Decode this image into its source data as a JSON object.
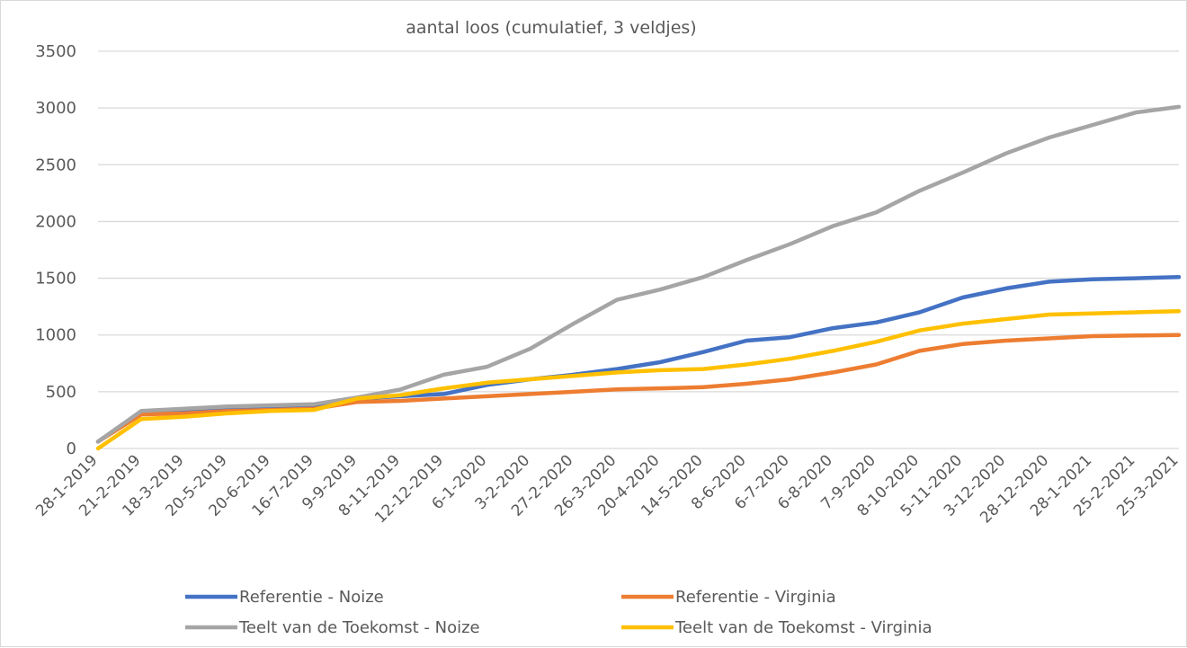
{
  "chart_data": {
    "type": "line",
    "title": "aantal loos (cumulatief, 3 veldjes)",
    "xlabel": "",
    "ylabel": "",
    "ylim": [
      0,
      3500
    ],
    "yticks": [
      0,
      500,
      1000,
      1500,
      2000,
      2500,
      3000,
      3500
    ],
    "grid": true,
    "legend_position": "bottom",
    "x": [
      "28-1-2019",
      "21-2-2019",
      "18-3-2019",
      "20-5-2019",
      "20-6-2019",
      "16-7-2019",
      "9-9-2019",
      "8-11-2019",
      "12-12-2019",
      "6-1-2020",
      "3-2-2020",
      "27-2-2020",
      "26-3-2020",
      "20-4-2020",
      "14-5-2020",
      "8-6-2020",
      "6-7-2020",
      "6-8-2020",
      "7-9-2020",
      "8-10-2020",
      "5-11-2020",
      "3-12-2020",
      "28-12-2020",
      "28-1-2021",
      "25-2-2021",
      "25-3-2021"
    ],
    "series": [
      {
        "name": "Referentie - Noize",
        "color": "#4472c4",
        "values": [
          60,
          320,
          330,
          350,
          360,
          370,
          440,
          460,
          480,
          560,
          610,
          650,
          700,
          760,
          850,
          950,
          980,
          1060,
          1110,
          1200,
          1330,
          1410,
          1470,
          1490,
          1500,
          1510
        ]
      },
      {
        "name": "Referentie - Virginia",
        "color": "#ed7d31",
        "values": [
          60,
          300,
          310,
          330,
          340,
          350,
          410,
          420,
          440,
          460,
          480,
          500,
          520,
          530,
          540,
          570,
          610,
          670,
          740,
          860,
          920,
          950,
          970,
          990,
          995,
          1000
        ]
      },
      {
        "name": "Teelt van de Toekomst - Noize",
        "color": "#a5a5a5",
        "values": [
          60,
          330,
          350,
          370,
          380,
          390,
          450,
          520,
          650,
          720,
          880,
          1100,
          1310,
          1400,
          1510,
          1660,
          1800,
          1960,
          2080,
          2270,
          2430,
          2600,
          2740,
          2850,
          2960,
          3010
        ]
      },
      {
        "name": "Teelt van de Toekomst - Virginia",
        "color": "#ffc000",
        "values": [
          0,
          260,
          280,
          310,
          330,
          340,
          440,
          470,
          530,
          580,
          610,
          640,
          670,
          690,
          700,
          740,
          790,
          860,
          940,
          1040,
          1100,
          1140,
          1180,
          1190,
          1200,
          1210
        ]
      }
    ]
  }
}
